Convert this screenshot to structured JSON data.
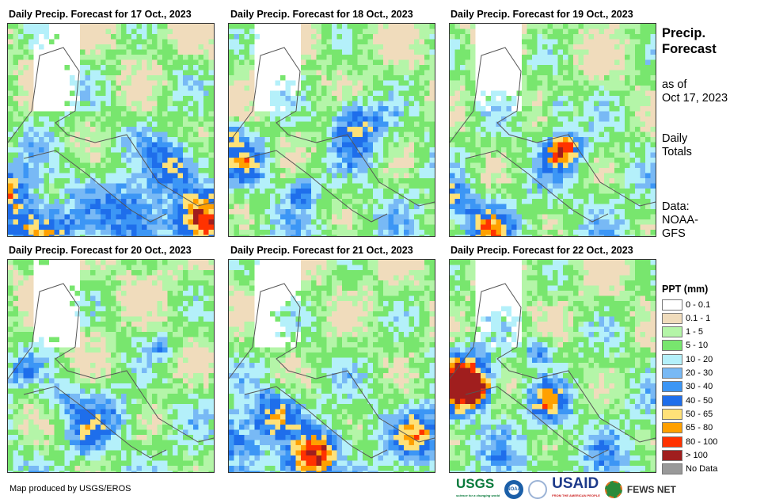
{
  "panels": [
    {
      "title": "Daily Precip. Forecast for 17 Oct., 2023",
      "wetness": 0.75
    },
    {
      "title": "Daily Precip. Forecast for 18 Oct., 2023",
      "wetness": 0.55
    },
    {
      "title": "Daily Precip. Forecast for 19 Oct., 2023",
      "wetness": 0.6
    },
    {
      "title": "Daily Precip. Forecast for 20 Oct., 2023",
      "wetness": 0.45
    },
    {
      "title": "Daily Precip. Forecast for 21 Oct., 2023",
      "wetness": 0.7
    },
    {
      "title": "Daily Precip. Forecast for 22 Oct., 2023",
      "wetness": 0.7
    }
  ],
  "side": {
    "title1": "Precip.",
    "title2": "Forecast",
    "asof1": "as of",
    "asof2": "Oct 17, 2023",
    "daily1": "Daily",
    "daily2": "Totals",
    "data1": "Data:",
    "data2": "NOAA-",
    "data3": "GFS"
  },
  "legend": {
    "title": "PPT (mm)",
    "items": [
      {
        "label": "0 - 0.1",
        "color": "#ffffff"
      },
      {
        "label": "0.1 - 1",
        "color": "#f0dcbc"
      },
      {
        "label": "1 - 5",
        "color": "#b4f5a8"
      },
      {
        "label": "5 - 10",
        "color": "#78e66e"
      },
      {
        "label": "10 - 20",
        "color": "#b4f0fa"
      },
      {
        "label": "20 - 30",
        "color": "#78b9f5"
      },
      {
        "label": "30 - 40",
        "color": "#3c96f5"
      },
      {
        "label": "40 - 50",
        "color": "#1e6eeb"
      },
      {
        "label": "50 - 65",
        "color": "#ffe178"
      },
      {
        "label": "65 - 80",
        "color": "#ffa000"
      },
      {
        "label": "80 - 100",
        "color": "#ff3200"
      },
      {
        "label": "> 100",
        "color": "#a01e1e"
      },
      {
        "label": "No Data",
        "color": "#999999"
      }
    ]
  },
  "footer": {
    "credit": "Map produced by USGS/EROS"
  },
  "logos": {
    "usgs": "USGS",
    "usgs_tagline": "science for a changing world",
    "noaa": "NOAA",
    "usaid": "USAID",
    "usaid_tagline": "FROM THE AMERICAN PEOPLE",
    "fews": "FEWS NET"
  }
}
